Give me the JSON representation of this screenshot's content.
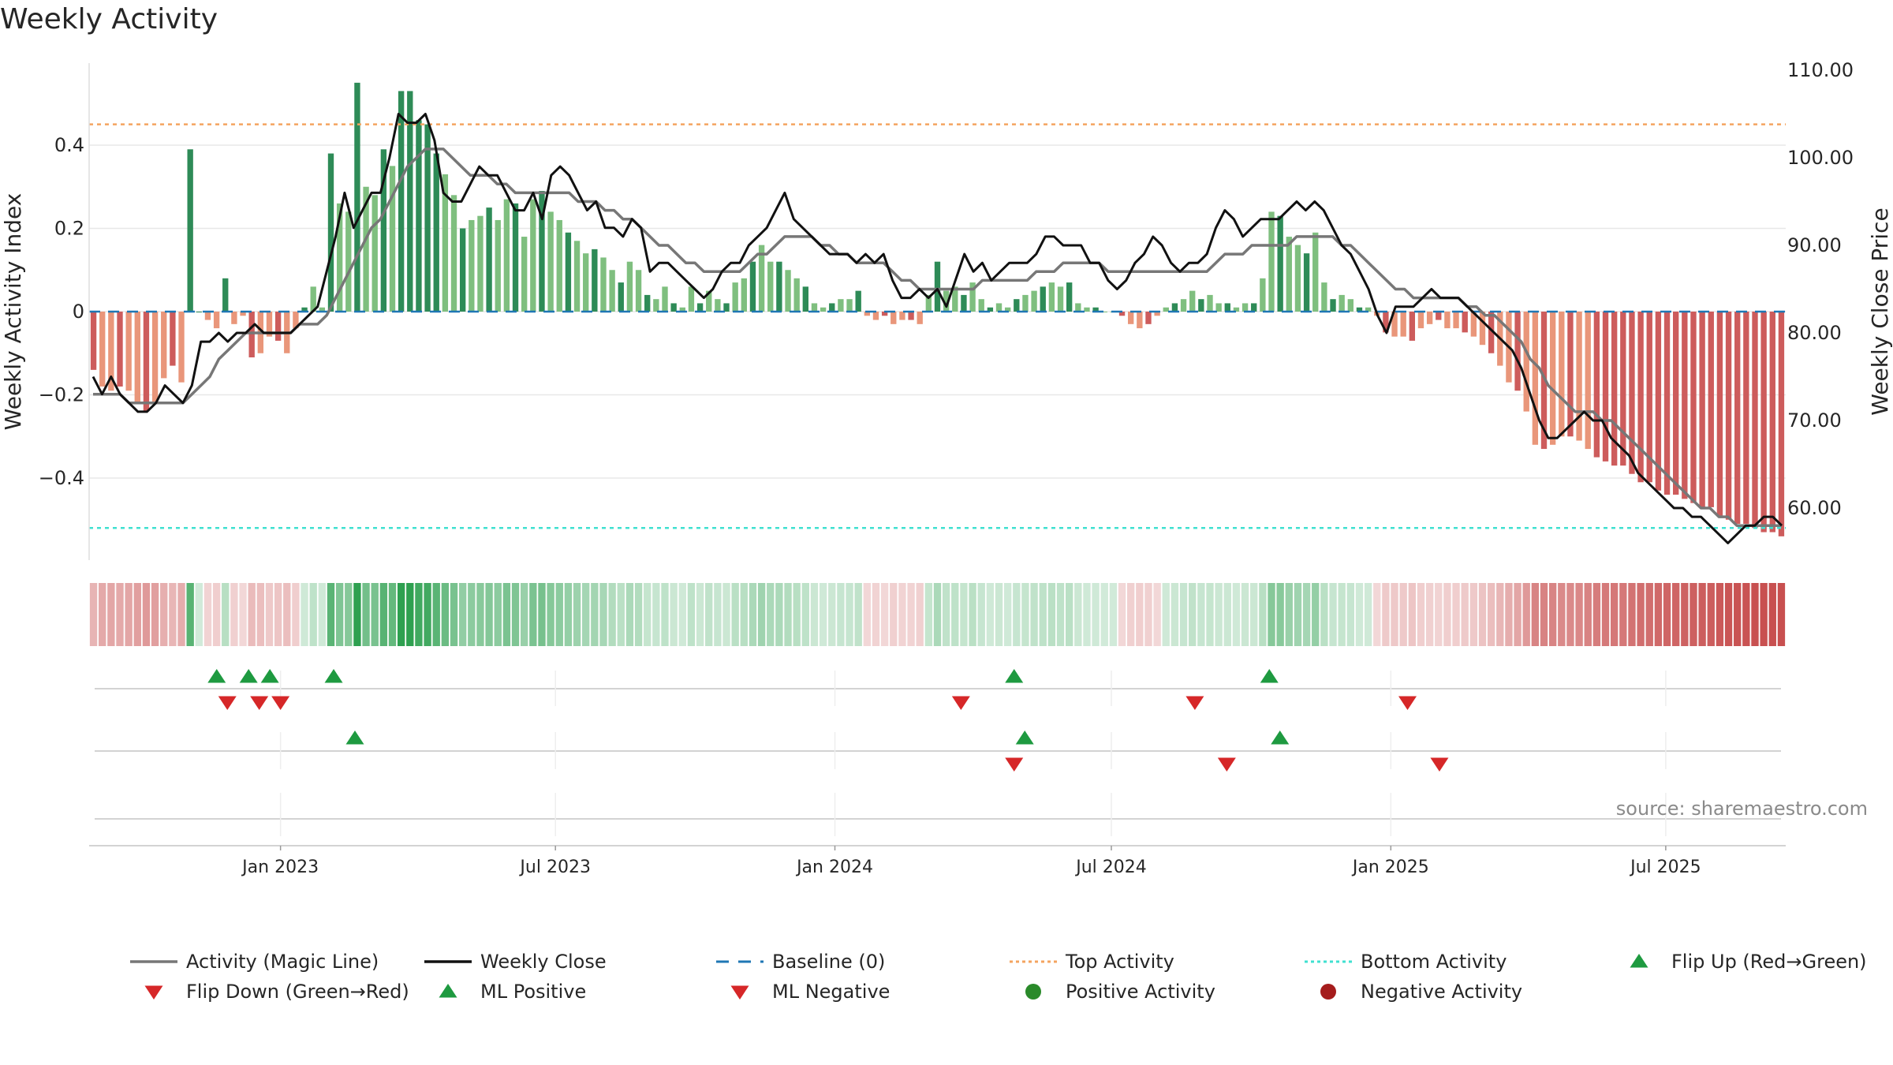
{
  "title": "Weekly Activity",
  "source": "source: sharemaestro.com",
  "colors": {
    "pos_dark": "#2e8b57",
    "pos_light": "#7fbf7f",
    "neg_dark": "#cd5c5c",
    "neg_light": "#e9967a",
    "magic": "#777777",
    "close": "#111111",
    "baseline": "#1f77b4",
    "top": "#f4a460",
    "bottom": "#40e0d0",
    "tri_up": "#1e9a40",
    "tri_down": "#d62728"
  },
  "chart_data": {
    "type": "bar",
    "ylabel_left": "Weekly Activity Index",
    "ylabel_right": "Weekly Close Price",
    "y_left_ticks": [
      "0.4",
      "0.2",
      "0",
      "−0.2",
      "−0.4"
    ],
    "y_left_tick_values": [
      0.4,
      0.2,
      0,
      -0.2,
      -0.4
    ],
    "y_right_ticks": [
      "110.00",
      "100.00",
      "90.00",
      "80.00",
      "70.00",
      "60.00"
    ],
    "y_right_tick_values": [
      110,
      100,
      90,
      80,
      70,
      60
    ],
    "ylim_left": [
      -0.6,
      0.6
    ],
    "ylim_right": [
      55,
      111
    ],
    "x_ticks": [
      "Jan 2023",
      "Jul 2023",
      "Jan 2024",
      "Jul 2024",
      "Jan 2025",
      "Jul 2025"
    ],
    "x_tick_dates": [
      "2023-01-01",
      "2023-07-01",
      "2024-01-01",
      "2024-07-01",
      "2025-01-01",
      "2025-07-01"
    ],
    "x_range": [
      "2022-08-28",
      "2025-09-18"
    ],
    "top_activity": 0.45,
    "bottom_activity": -0.52,
    "baseline": 0,
    "activity": [
      [
        -0.14,
        -0.18,
        -0.19,
        -0.18,
        -0.19,
        -0.22,
        -0.24,
        -0.22,
        -0.16,
        -0.13,
        -0.17,
        0.39,
        0,
        -0.02,
        -0.04,
        0.08,
        -0.03,
        -0.01,
        -0.11,
        -0.1,
        -0.06,
        -0.07,
        -0.1,
        -0.04,
        0.01,
        0.06,
        0.01,
        0.38,
        0.26,
        0.24,
        0.55,
        0.3,
        0.28,
        0.39,
        0.35,
        0.53,
        0.53,
        0.46,
        0.45,
        0.38,
        0.33,
        0.28,
        0.2,
        0.22,
        0.23,
        0.25,
        0.22,
        0.27,
        0.26,
        0.18,
        0.27,
        0.29,
        0.24,
        0.22,
        0.19,
        0.17,
        0.14,
        0.15,
        0.13,
        0.1,
        0.07,
        0.12,
        0.1,
        0.04,
        0.03,
        0.06,
        0.02,
        0.01,
        0.06,
        0.02,
        0.05,
        0.03,
        0.02,
        0.07,
        0.08,
        0.12,
        0.16,
        0.12,
        0.12,
        0.1,
        0.08,
        0.06,
        0.02,
        0.01,
        0.02,
        0.03,
        0.03,
        0.05,
        -0.01,
        -0.02,
        -0.01,
        -0.03,
        -0.02,
        -0.02,
        -0.03,
        0.04,
        0.12,
        0.05,
        0.06,
        0.04,
        0.07,
        0.03,
        0.01,
        0.02,
        0.01,
        0.03,
        0.04,
        0.05,
        0.06,
        0.07,
        0.06,
        0.07,
        0.02,
        0.01,
        0.01,
        0,
        0,
        -0.01,
        -0.03,
        -0.04,
        -0.03,
        -0.01,
        0.01,
        0.02,
        0.03,
        0.05,
        0.03,
        0.04,
        0.02,
        0.02,
        0.01,
        0.02,
        0.02,
        0.08,
        0.24,
        0.23,
        0.18,
        0.16,
        0.14,
        0.19,
        0.07,
        0.03,
        0.04,
        0.03,
        0.01,
        0.01,
        -0.01,
        -0.05,
        -0.06,
        -0.06,
        -0.07,
        -0.04,
        -0.03,
        -0.02,
        -0.04,
        -0.04,
        -0.05,
        -0.06,
        -0.08,
        -0.1,
        -0.13,
        -0.17,
        -0.19,
        -0.24,
        -0.32,
        -0.33,
        -0.32,
        -0.3,
        -0.3,
        -0.31,
        -0.33,
        -0.35,
        -0.36,
        -0.37,
        -0.37,
        -0.39,
        -0.41,
        -0.41,
        -0.43,
        -0.44,
        -0.44,
        -0.45,
        -0.46,
        -0.47,
        -0.47,
        -0.49,
        -0.5,
        -0.51,
        -0.51,
        -0.52,
        -0.53,
        -0.53,
        -0.54
      ]
    ],
    "weekly_close": [
      75,
      73,
      75,
      73,
      72,
      71,
      71,
      72,
      74,
      73,
      72,
      74,
      79,
      79,
      80,
      79,
      80,
      80,
      81,
      80,
      80,
      80,
      80,
      81,
      82,
      83,
      87,
      91,
      96,
      92,
      94,
      96,
      96,
      100,
      105,
      104,
      104,
      105,
      102,
      96,
      95,
      95,
      97,
      99,
      98,
      98,
      96,
      94,
      94,
      96,
      93,
      98,
      99,
      98,
      96,
      94,
      95,
      92,
      92,
      91,
      93,
      92,
      87,
      88,
      88,
      87,
      86,
      85,
      84,
      85,
      87,
      88,
      88,
      90,
      91,
      92,
      94,
      96,
      93,
      92,
      91,
      90,
      89,
      89,
      89,
      88,
      89,
      88,
      89,
      86,
      84,
      84,
      85,
      84,
      85,
      83,
      86,
      89,
      87,
      88,
      86,
      87,
      88,
      88,
      88,
      89,
      91,
      91,
      90,
      90,
      90,
      88,
      88,
      86,
      85,
      86,
      88,
      89,
      91,
      90,
      88,
      87,
      88,
      88,
      89,
      92,
      94,
      93,
      91,
      92,
      93,
      93,
      93,
      94,
      95,
      94,
      95,
      94,
      92,
      90,
      89,
      87,
      85,
      82,
      80,
      83,
      83,
      83,
      84,
      85,
      84,
      84,
      84,
      83,
      82,
      81,
      80,
      79,
      78,
      76,
      73,
      70,
      68,
      68,
      69,
      70,
      71,
      70,
      70,
      68,
      67,
      66,
      64,
      63,
      62,
      61,
      60,
      60,
      59,
      59,
      58,
      57,
      56,
      57,
      58,
      58,
      59,
      59,
      58
    ],
    "magic_line": [
      73,
      73,
      73,
      73,
      72,
      72,
      72,
      72,
      72,
      72,
      72,
      73,
      74,
      75,
      77,
      78,
      79,
      80,
      80,
      80,
      80,
      80,
      80,
      81,
      81,
      81,
      82,
      84,
      86,
      88,
      90,
      92,
      93,
      95,
      97,
      99,
      100,
      101,
      101,
      101,
      100,
      99,
      98,
      98,
      98,
      97,
      97,
      96,
      96,
      96,
      96,
      96,
      96,
      96,
      95,
      95,
      95,
      94,
      94,
      93,
      93,
      92,
      91,
      90,
      90,
      89,
      88,
      88,
      87,
      87,
      87,
      87,
      87,
      88,
      89,
      89,
      90,
      91,
      91,
      91,
      91,
      90,
      90,
      89,
      89,
      88,
      88,
      88,
      88,
      87,
      86,
      86,
      85,
      85,
      85,
      85,
      85,
      85,
      85,
      86,
      86,
      86,
      86,
      86,
      86,
      87,
      87,
      87,
      88,
      88,
      88,
      88,
      88,
      87,
      87,
      87,
      87,
      87,
      87,
      87,
      87,
      87,
      87,
      87,
      87,
      88,
      89,
      89,
      89,
      90,
      90,
      90,
      90,
      90,
      91,
      91,
      91,
      91,
      91,
      90,
      90,
      89,
      88,
      87,
      86,
      85,
      85,
      84,
      84,
      84,
      84,
      84,
      84,
      83,
      83,
      82,
      82,
      81,
      80,
      79,
      77,
      76,
      74,
      73,
      72,
      71,
      71,
      71,
      70,
      70,
      69,
      68,
      67,
      66,
      65,
      64,
      63,
      62,
      61,
      60,
      60,
      59,
      59,
      58,
      58,
      58,
      58,
      58,
      58
    ],
    "flip_up_dates": [
      "2022-11-20",
      "2022-12-11",
      "2022-12-25",
      "2023-02-05",
      "2024-04-28",
      "2024-10-13"
    ],
    "flip_down_dates": [
      "2022-11-27",
      "2022-12-18",
      "2023-01-01",
      "2024-03-24",
      "2024-08-25",
      "2025-01-12"
    ],
    "ml_positive_dates": [
      "2023-02-19",
      "2024-05-05",
      "2024-10-20"
    ],
    "ml_negative_dates": [
      "2024-04-28",
      "2024-09-15",
      "2025-02-02"
    ]
  },
  "legend": [
    {
      "label": "Activity (Magic Line)",
      "kind": "line",
      "color": "#777777"
    },
    {
      "label": "Weekly Close",
      "kind": "line",
      "color": "#111111"
    },
    {
      "label": "Baseline (0)",
      "kind": "dash",
      "color": "#1f77b4"
    },
    {
      "label": "Top Activity",
      "kind": "dot",
      "color": "#f4a460"
    },
    {
      "label": "Bottom Activity",
      "kind": "dot",
      "color": "#40e0d0"
    },
    {
      "label": "Flip Up (Red→Green)",
      "kind": "tri-up",
      "color": "#1e9a40"
    },
    {
      "label": "Flip Down (Green→Red)",
      "kind": "tri-down",
      "color": "#d62728"
    },
    {
      "label": "ML Positive",
      "kind": "tri-up",
      "color": "#1e9a40"
    },
    {
      "label": "ML Negative",
      "kind": "tri-down",
      "color": "#d62728"
    },
    {
      "label": "Positive Activity",
      "kind": "circle",
      "color": "#2a8a2a"
    },
    {
      "label": "Negative Activity",
      "kind": "circle",
      "color": "#a51c1c"
    }
  ]
}
